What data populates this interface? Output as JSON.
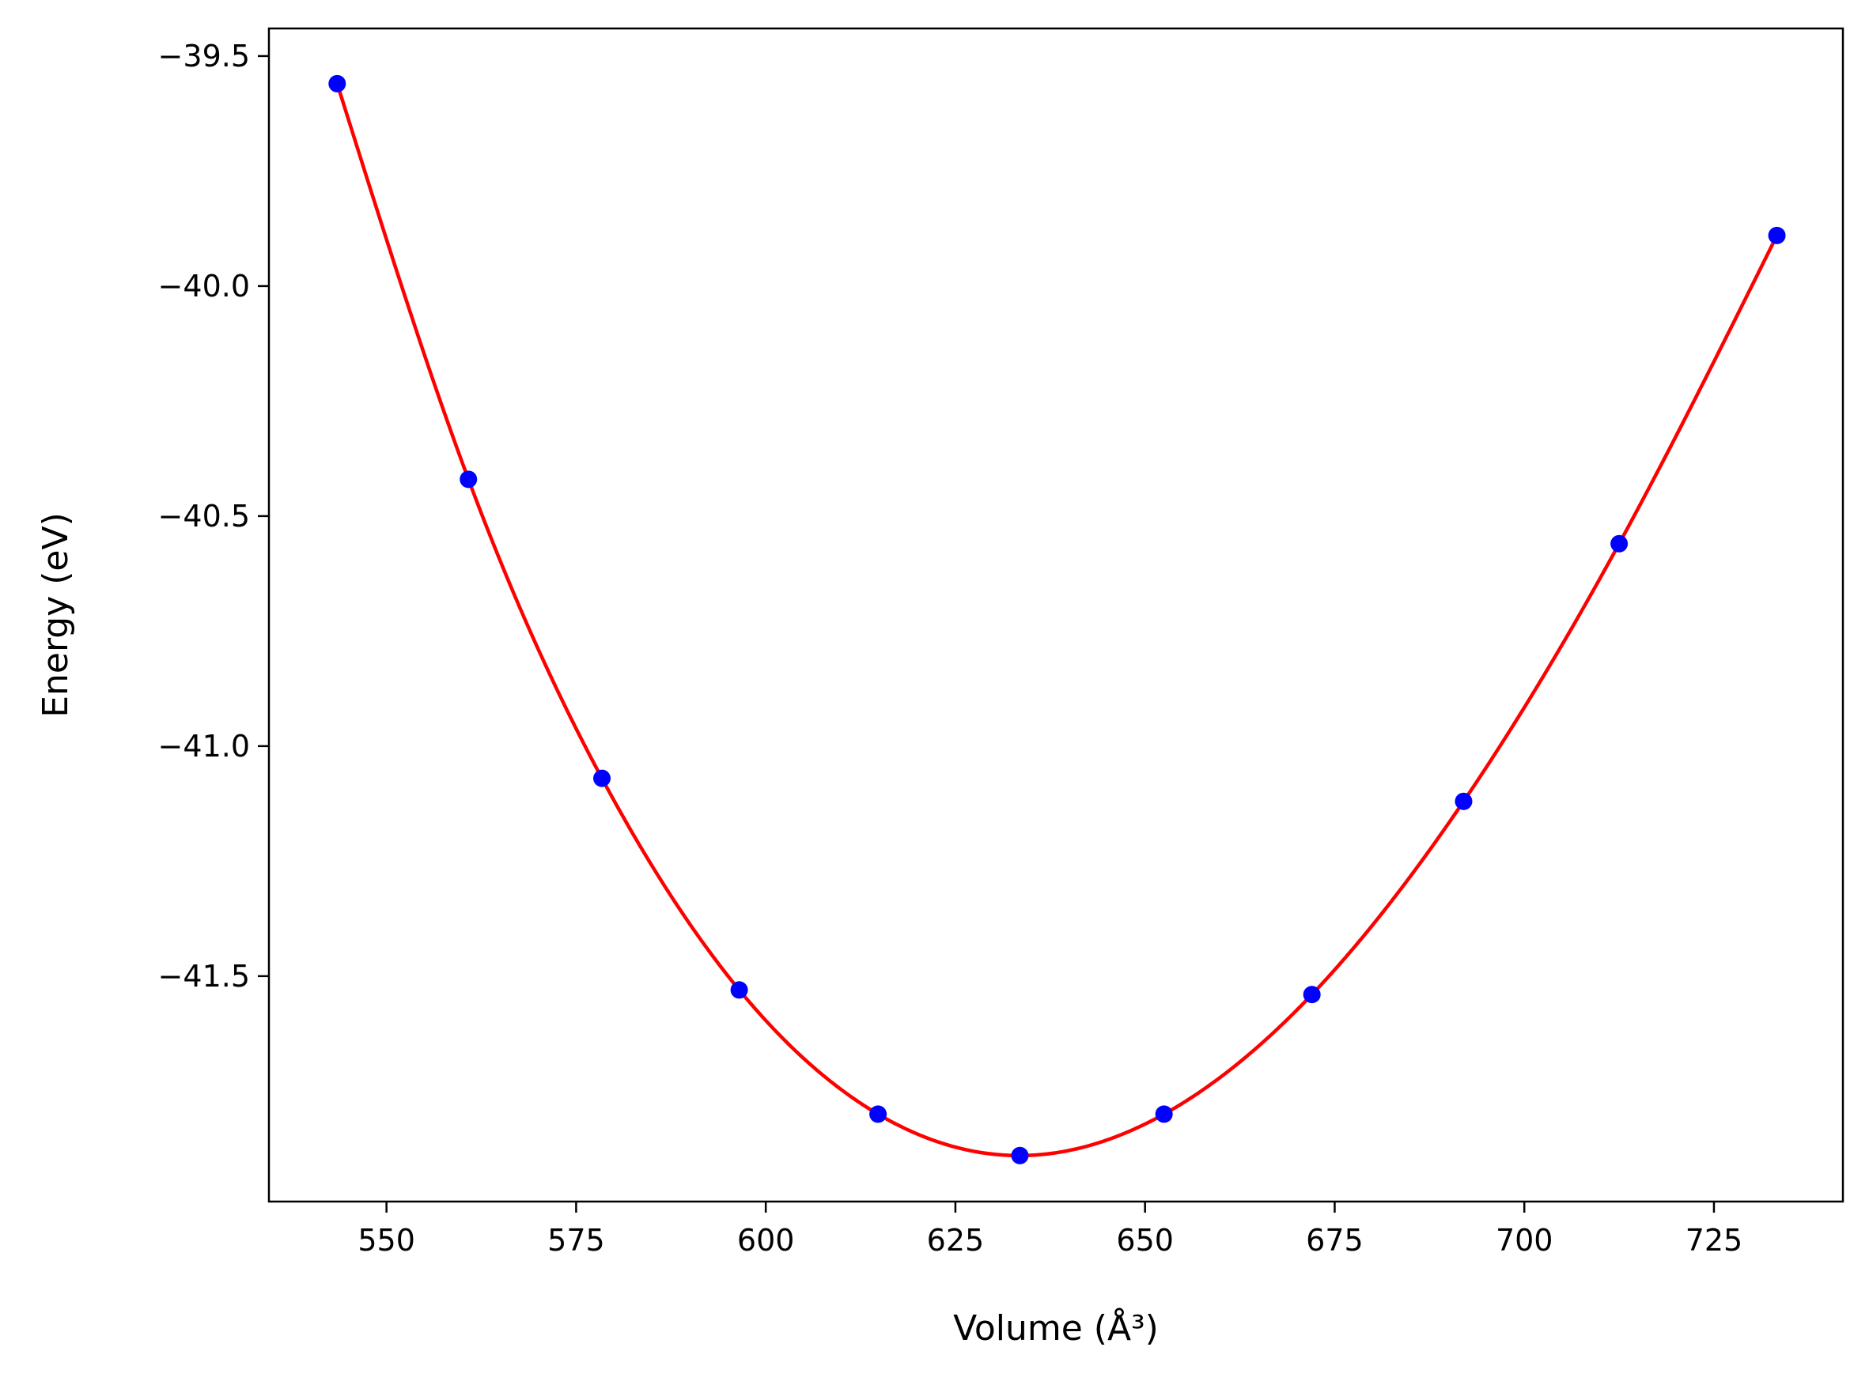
{
  "chart_data": {
    "type": "scatter",
    "title": "",
    "xlabel": "Volume (Å³)",
    "ylabel": "Energy (eV)",
    "xlim": [
      534.5,
      742.0
    ],
    "ylim": [
      -41.99,
      -39.44
    ],
    "xticks": [
      550,
      575,
      600,
      625,
      650,
      675,
      700,
      725
    ],
    "xtick_labels": [
      "550",
      "575",
      "600",
      "625",
      "650",
      "675",
      "700",
      "725"
    ],
    "yticks": [
      -39.5,
      -40.0,
      -40.5,
      -41.0,
      -41.5
    ],
    "ytick_labels": [
      "−39.5",
      "−40.0",
      "−40.5",
      "−41.0",
      "−41.5"
    ],
    "grid": false,
    "series": [
      {
        "kind": "points",
        "color": "#0000ff",
        "x": [
          543.5,
          560.8,
          578.4,
          596.5,
          614.8,
          633.5,
          652.5,
          672.0,
          692.0,
          712.5,
          733.3
        ],
        "y": [
          -39.56,
          -40.42,
          -41.07,
          -41.53,
          -41.8,
          -41.89,
          -41.8,
          -41.54,
          -41.12,
          -40.56,
          -39.89
        ]
      },
      {
        "kind": "fit-curve",
        "color": "#ff0000",
        "x_range": [
          543.5,
          733.3
        ],
        "minimum": {
          "x": 631.5,
          "y": -41.88
        }
      }
    ]
  }
}
